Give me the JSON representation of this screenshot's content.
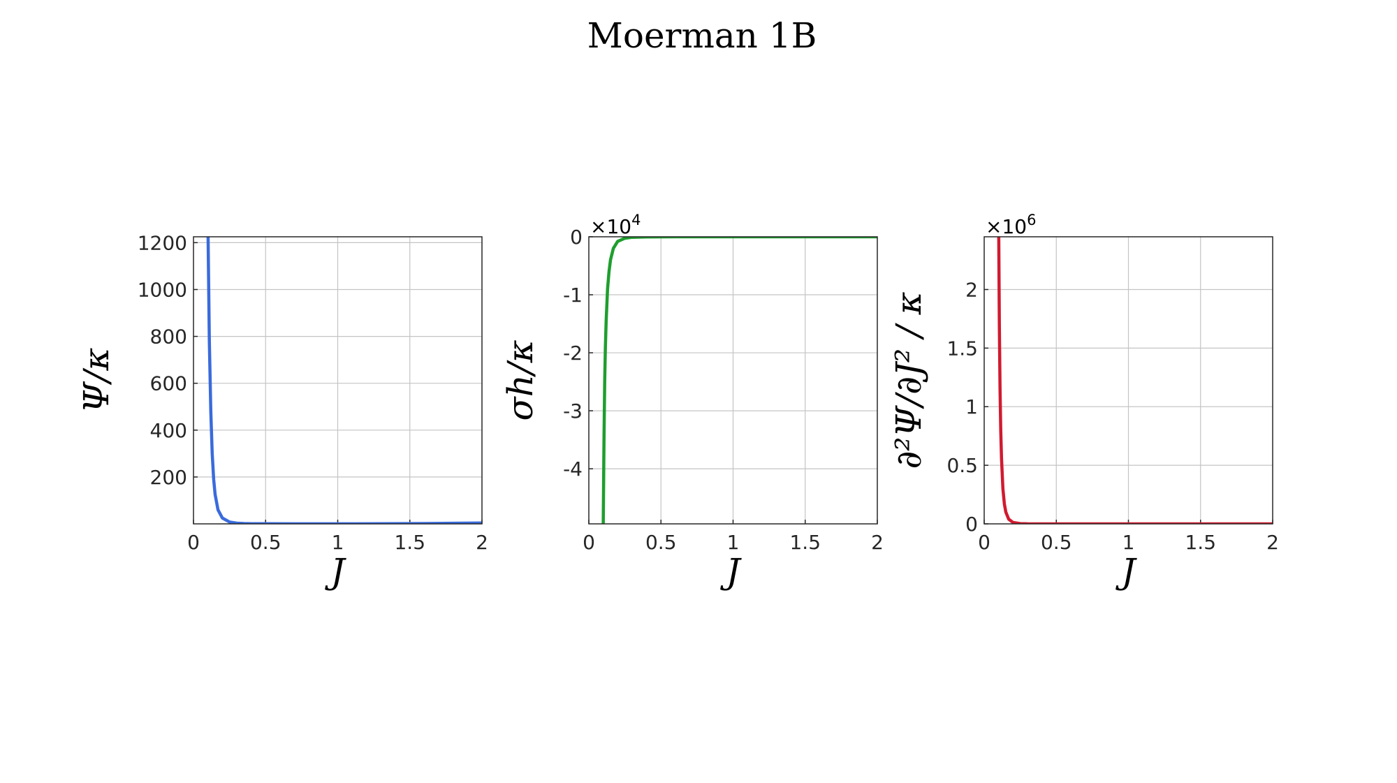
{
  "figure": {
    "title": "Moerman 1B"
  },
  "chart_data": [
    {
      "type": "line",
      "xlabel": "J",
      "ylabel": "Ψ/κ",
      "xlim": [
        0,
        2
      ],
      "ylim": [
        0,
        1225
      ],
      "xticks": [
        "0",
        "0.5",
        "1",
        "1.5",
        "2"
      ],
      "yticks": [
        "200",
        "400",
        "600",
        "800",
        "1000",
        "1200"
      ],
      "ytick_values": [
        200,
        400,
        600,
        800,
        1000,
        1200
      ],
      "multiplier": "",
      "grid": true,
      "color": "#3a6bdc",
      "series": [
        {
          "x": [
            0.1,
            0.11,
            0.12,
            0.13,
            0.14,
            0.15,
            0.17,
            0.2,
            0.25,
            0.3,
            0.35,
            0.4,
            0.5,
            0.7,
            1.0,
            1.3,
            1.6,
            2.0
          ],
          "y": [
            1300,
            780,
            480,
            300,
            190,
            125,
            60,
            25,
            8,
            3,
            1.5,
            1,
            0.5,
            0.3,
            0.3,
            0.6,
            1.5,
            4
          ]
        }
      ]
    },
    {
      "type": "line",
      "xlabel": "J",
      "ylabel": "σh/κ",
      "xlim": [
        0,
        2
      ],
      "ylim": [
        -49500,
        0
      ],
      "xticks": [
        "0",
        "0.5",
        "1",
        "1.5",
        "2"
      ],
      "yticks": [
        "0",
        "-1",
        "-2",
        "-3",
        "-4"
      ],
      "ytick_values": [
        0,
        -10000,
        -20000,
        -30000,
        -40000
      ],
      "multiplier": "×10",
      "multiplier_exp": "4",
      "grid": true,
      "color": "#1e9e2e",
      "series": [
        {
          "x": [
            0.1,
            0.105,
            0.11,
            0.115,
            0.12,
            0.13,
            0.14,
            0.15,
            0.17,
            0.2,
            0.25,
            0.3,
            0.4,
            0.6,
            1.0,
            1.5,
            2.0
          ],
          "y": [
            -50000,
            -35000,
            -25000,
            -19000,
            -14500,
            -9000,
            -6000,
            -4000,
            -2000,
            -800,
            -250,
            -80,
            -20,
            -4,
            -1,
            -0.5,
            -0.3
          ]
        }
      ]
    },
    {
      "type": "line",
      "xlabel": "J",
      "ylabel": "∂²Ψ/∂J² / κ",
      "xlim": [
        0,
        2
      ],
      "ylim": [
        0,
        2450000
      ],
      "xticks": [
        "0",
        "0.5",
        "1",
        "1.5",
        "2"
      ],
      "yticks": [
        "0",
        "0.5",
        "1",
        "1.5",
        "2"
      ],
      "ytick_values": [
        0,
        500000,
        1000000,
        1500000,
        2000000
      ],
      "multiplier": "×10",
      "multiplier_exp": "6",
      "grid": true,
      "color": "#d11a30",
      "series": [
        {
          "x": [
            0.1,
            0.105,
            0.11,
            0.115,
            0.12,
            0.13,
            0.14,
            0.15,
            0.17,
            0.2,
            0.25,
            0.3,
            0.4,
            0.6,
            1.0,
            1.5,
            2.0
          ],
          "y": [
            2600000,
            1700000,
            1150000,
            800000,
            560000,
            300000,
            170000,
            100000,
            40000,
            12000,
            2500,
            700,
            100,
            10,
            1,
            0.5,
            0.3
          ]
        }
      ]
    }
  ]
}
